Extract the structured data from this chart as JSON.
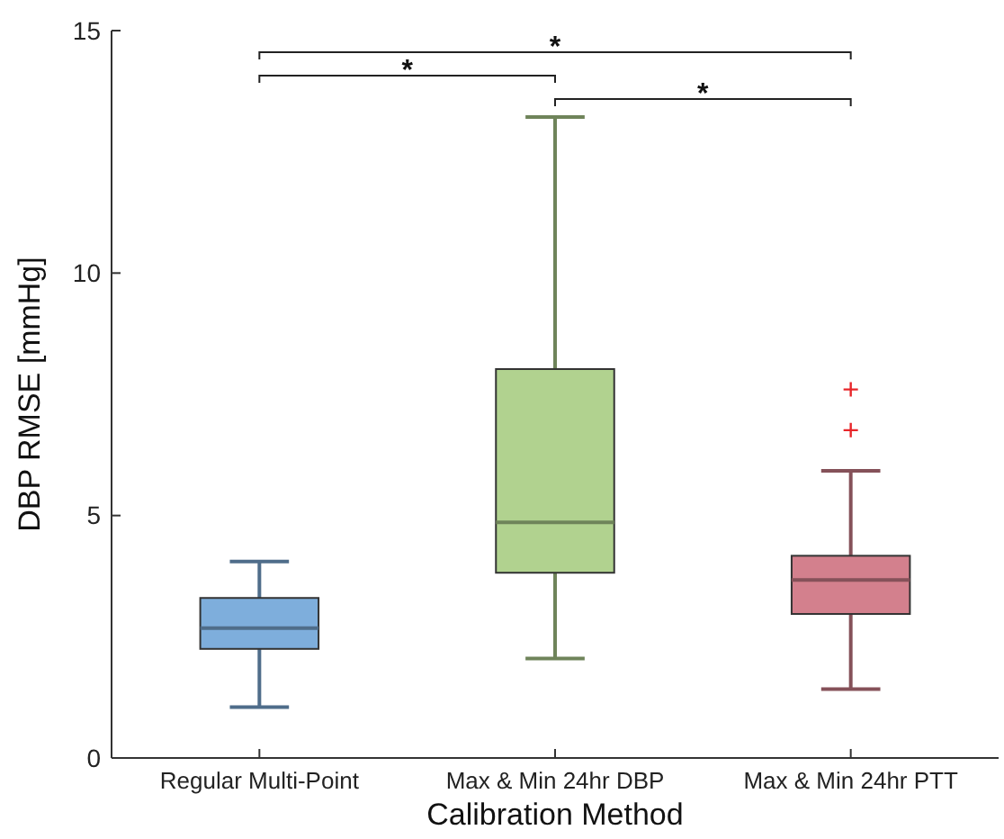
{
  "chart_data": {
    "type": "box",
    "xlabel": "Calibration Method",
    "ylabel": "DBP RMSE [mmHg]",
    "categories": [
      "Regular Multi-Point",
      "Max & Min 24hr DBP",
      "Max & Min 24hr PTT"
    ],
    "boxes": [
      {
        "low": 1.05,
        "q1": 2.25,
        "median": 2.68,
        "q3": 3.3,
        "high": 4.05
      },
      {
        "low": 2.05,
        "q1": 3.82,
        "median": 4.86,
        "q3": 8.02,
        "high": 13.22
      },
      {
        "low": 1.42,
        "q1": 2.97,
        "median": 3.67,
        "q3": 4.17,
        "high": 5.92,
        "outliers": [
          7.6,
          6.76
        ]
      }
    ],
    "colors": [
      "#7eaedc",
      "#b1d28f",
      "#d3808d"
    ],
    "ylim": [
      0,
      15
    ],
    "yticks": [
      0,
      5,
      10,
      15
    ],
    "grid": false,
    "annotations": [
      "*",
      "*",
      "*"
    ]
  }
}
